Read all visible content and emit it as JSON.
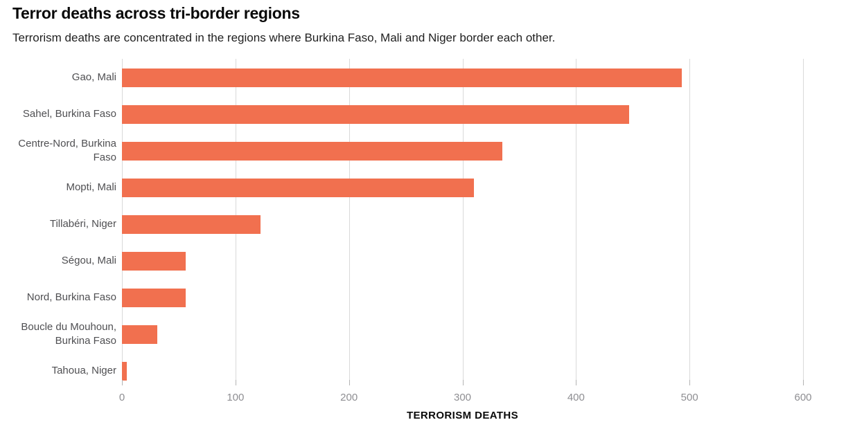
{
  "header": {
    "title": "Terror deaths across tri-border regions",
    "subtitle": "Terrorism deaths are concentrated in the regions where Burkina Faso, Mali and Niger border each other."
  },
  "chart_data": {
    "type": "bar",
    "orientation": "horizontal",
    "title": "Terror deaths across tri-border regions",
    "subtitle": "Terrorism deaths are concentrated in the regions where Burkina Faso, Mali and Niger border each other.",
    "categories": [
      "Gao, Mali",
      "Sahel, Burkina Faso",
      "Centre-Nord, Burkina Faso",
      "Mopti, Mali",
      "Tillabéri, Niger",
      "Ségou, Mali",
      "Nord, Burkina Faso",
      "Boucle du Mouhoun, Burkina Faso",
      "Tahoua, Niger"
    ],
    "values": [
      493,
      447,
      335,
      310,
      122,
      56,
      56,
      31,
      4
    ],
    "xlabel": "TERRORISM DEATHS",
    "ylabel": "",
    "xlim": [
      0,
      600
    ],
    "xticks": [
      0,
      100,
      200,
      300,
      400,
      500,
      600
    ],
    "grid": true,
    "legend": "none",
    "bar_color": "#f1704f"
  },
  "colors": {
    "bar": "#f1704f",
    "gridline": "#d9d9d9",
    "tick_label": "#8e8e92",
    "category_label": "#4f4f52",
    "title": "#0a0a0a",
    "background": "#ffffff"
  }
}
